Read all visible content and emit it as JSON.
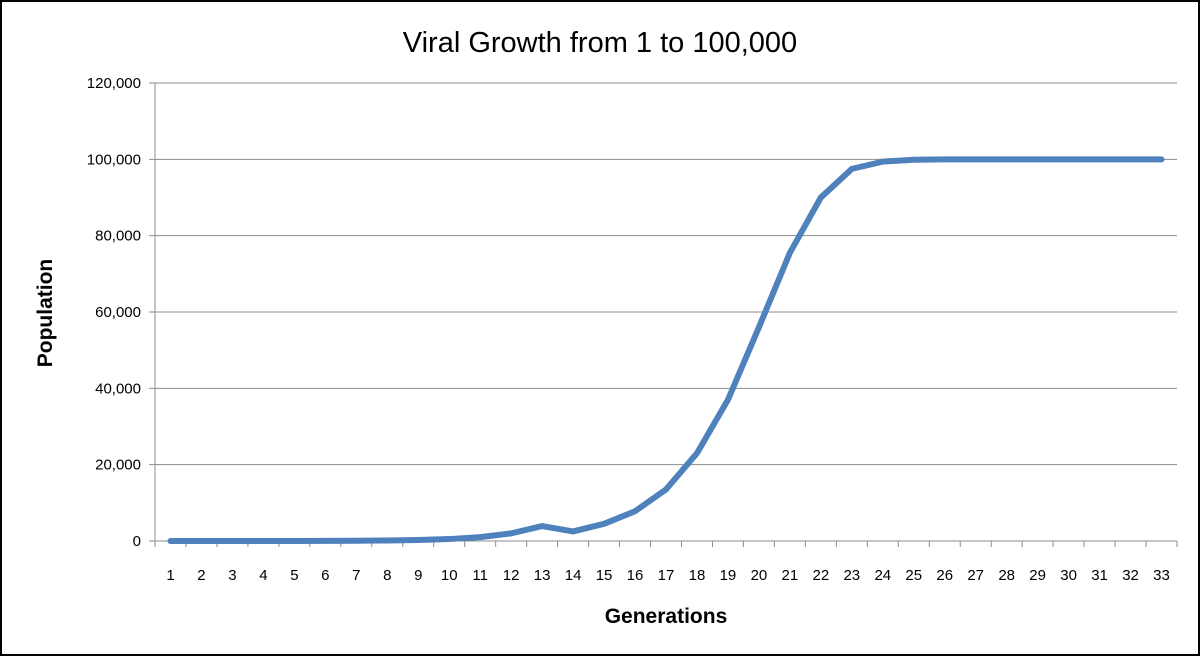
{
  "chart_data": {
    "type": "line",
    "title": "Viral Growth from 1 to 100,000",
    "xlabel": "Generations",
    "ylabel": "Population",
    "ylim": [
      0,
      120000
    ],
    "y_ticks": [
      0,
      20000,
      40000,
      60000,
      80000,
      100000,
      120000
    ],
    "y_tick_labels": [
      "0",
      "20,000",
      "40,000",
      "60,000",
      "80,000",
      "100,000",
      "120,000"
    ],
    "grid": true,
    "legend": "none",
    "categories": [
      "1",
      "2",
      "3",
      "4",
      "5",
      "6",
      "7",
      "8",
      "9",
      "10",
      "11",
      "12",
      "13",
      "14",
      "15",
      "16",
      "17",
      "18",
      "19",
      "20",
      "21",
      "22",
      "23",
      "24",
      "25",
      "26",
      "27",
      "28",
      "29",
      "30",
      "31",
      "32",
      "33"
    ],
    "series": [
      {
        "name": "Population",
        "color": "#4f81bd",
        "values": [
          1,
          2,
          4,
          8,
          16,
          32,
          64,
          128,
          255,
          508,
          1011,
          1999,
          3919,
          2500,
          4500,
          7800,
          13500,
          23000,
          37000,
          56000,
          75500,
          90000,
          97500,
          99400,
          99900,
          100000,
          100000,
          100000,
          100000,
          100000,
          100000,
          100000,
          100000
        ]
      }
    ]
  }
}
